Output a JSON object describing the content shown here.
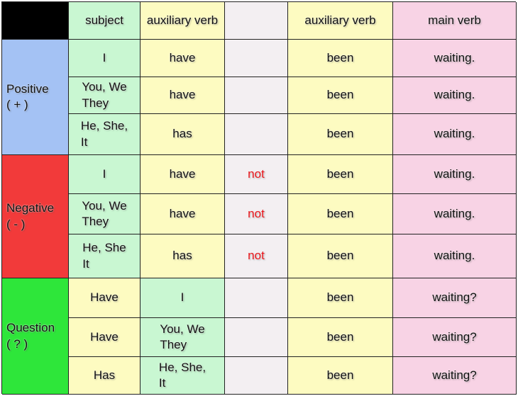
{
  "colors": {
    "header": "#000000",
    "positive": "#a4c2f4",
    "negative": "#f23a3a",
    "question": "#2ee63a",
    "subject": "#c9f7d2",
    "auxiliary": "#fdfbc1",
    "not_col": "#f3eff2",
    "main_verb": "#f8d3e5",
    "not_text": "#e8141a"
  },
  "header": [
    "subject",
    "auxiliary verb",
    "",
    "auxiliary verb",
    "main verb"
  ],
  "groups": [
    {
      "label": "Positive\n( + )",
      "rows": [
        [
          "I",
          "have",
          "",
          "been",
          "waiting."
        ],
        [
          "You, We\nThey",
          "have",
          "",
          "been",
          "waiting."
        ],
        [
          "He, She,\nIt",
          "has",
          "",
          "been",
          "waiting."
        ]
      ]
    },
    {
      "label": "Negative\n( - )",
      "rows": [
        [
          "I",
          "have",
          "not",
          "been",
          "waiting."
        ],
        [
          "You, We\nThey",
          "have",
          "not",
          "been",
          "waiting."
        ],
        [
          "He, She\nIt",
          "has",
          "not",
          "been",
          "waiting."
        ]
      ]
    },
    {
      "label": "Question\n( ? )",
      "rows": [
        [
          "Have",
          "I",
          "",
          "been",
          "waiting?"
        ],
        [
          "Have",
          "You, We\nThey",
          "",
          "been",
          "waiting?"
        ],
        [
          "Has",
          "He, She,\nIt",
          "",
          "been",
          "waiting?"
        ]
      ]
    }
  ]
}
